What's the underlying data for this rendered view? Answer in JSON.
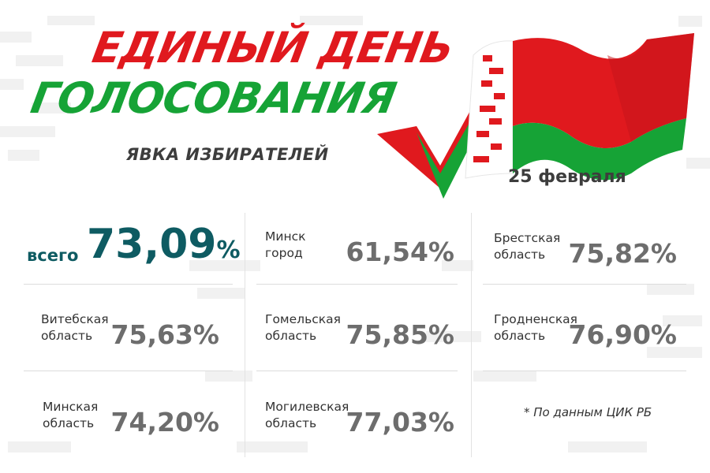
{
  "header": {
    "title_line1": "ЕДИНЫЙ ДЕНЬ",
    "title_line2": "ГОЛОСОВАНИЯ",
    "subtitle": "ЯВКА ИЗБИРАТЕЛЕЙ",
    "date": "25 февраля"
  },
  "total": {
    "label": "всего",
    "value": "73,09",
    "unit": "%"
  },
  "regions": [
    {
      "line1": "Минск",
      "line2": "город",
      "value": "61,54%"
    },
    {
      "line1": "Брестская",
      "line2": "область",
      "value": "75,82%"
    },
    {
      "line1": "Витебская",
      "line2": "область",
      "value": "75,63%"
    },
    {
      "line1": "Гомельская",
      "line2": "область",
      "value": "75,85%"
    },
    {
      "line1": "Гродненская",
      "line2": "область",
      "value": "76,90%"
    },
    {
      "line1": "Минская",
      "line2": "область",
      "value": "74,20%"
    },
    {
      "line1": "Могилевская",
      "line2": "область",
      "value": "77,03%"
    }
  ],
  "footnote": "* По данным ЦИК РБ",
  "colors": {
    "red": "#e0191e",
    "green": "#16a336",
    "teal": "#0e5b62",
    "gray_value": "#6d6d6d"
  },
  "icons": [
    "belarus-flag-icon",
    "checkmark-icon"
  ]
}
